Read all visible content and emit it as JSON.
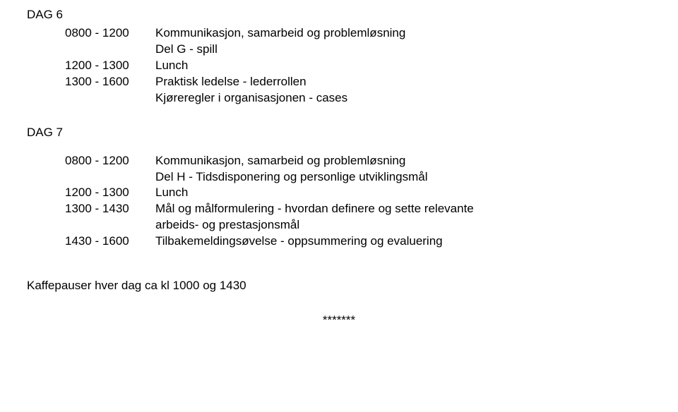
{
  "blocks": [
    {
      "type": "day",
      "header": "DAG 6",
      "rows": [
        {
          "time": "0800 - 1200",
          "text": "Kommunikasjon, samarbeid og problemløsning"
        },
        {
          "time": "",
          "text": "Del G - spill"
        },
        {
          "time": "1200 - 1300",
          "text": "Lunch"
        },
        {
          "time": "1300 - 1600",
          "text": "Praktisk ledelse - lederrollen"
        },
        {
          "time": "",
          "text": "Kjøreregler i organisasjonen - cases"
        }
      ]
    },
    {
      "type": "day",
      "header": "DAG 7",
      "rows": [
        {
          "time": "0800 - 1200",
          "text": "Kommunikasjon, samarbeid og problemløsning"
        },
        {
          "time": "",
          "text": "Del H - Tidsdisponering og personlige utviklingsmål"
        },
        {
          "time": "1200 - 1300",
          "text": "Lunch"
        },
        {
          "time": "1300 - 1430",
          "text": "Mål og målformulering - hvordan definere og sette relevante"
        },
        {
          "time": "",
          "text": "arbeids- og prestasjonsmål"
        },
        {
          "time": "1430 - 1600",
          "text": "Tilbakemeldingsøvelse - oppsummering og evaluering"
        }
      ]
    },
    {
      "type": "line",
      "text": "Kaffepauser hver dag ca kl 1000 og 1430"
    },
    {
      "type": "centered",
      "text": "*******"
    }
  ]
}
